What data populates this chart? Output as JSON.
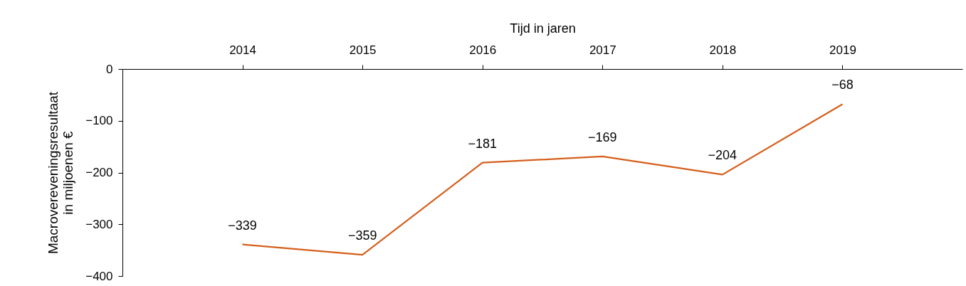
{
  "chart_data": {
    "type": "line",
    "xlabel": "Tijd in jaren",
    "ylabel": "Macrovereveningsresultaat\nin miljoenen €",
    "categories": [
      "2014",
      "2015",
      "2016",
      "2017",
      "2018",
      "2019"
    ],
    "series": [
      {
        "color": "#d55f1c",
        "values": [
          -339,
          -359,
          -181,
          -169,
          -204,
          -68
        ]
      }
    ],
    "ylim": [
      -400,
      0
    ],
    "yticks": [
      -400,
      -300,
      -200,
      -100,
      0
    ],
    "grid": false,
    "legend": false,
    "marker": "none",
    "data_labels": true
  }
}
